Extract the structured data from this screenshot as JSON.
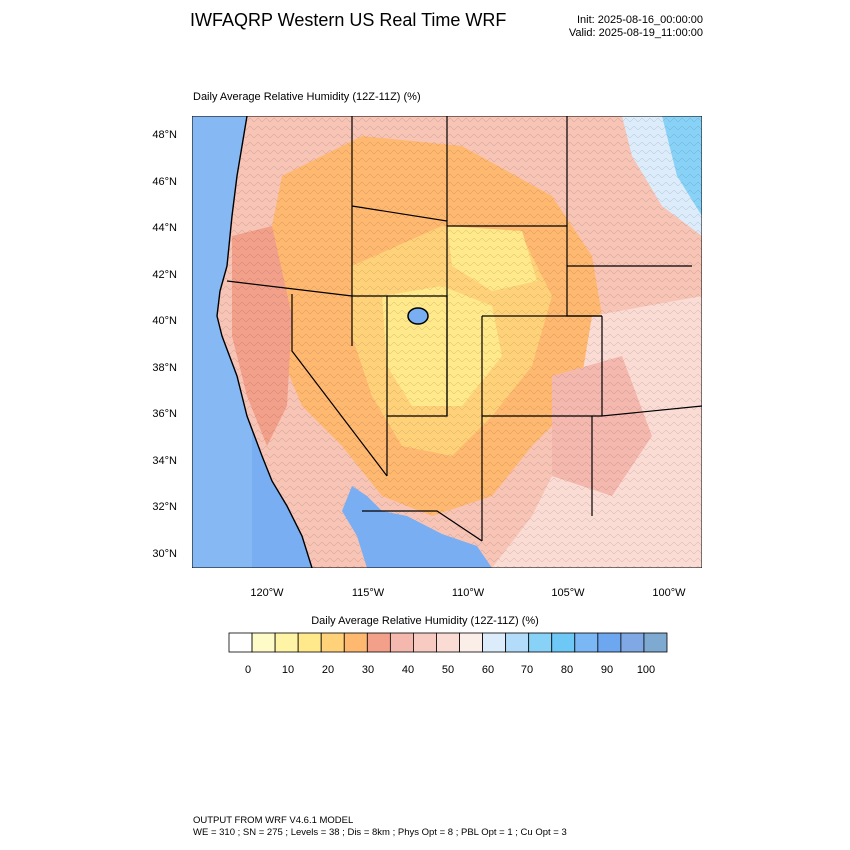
{
  "header": {
    "title": "IWFAQRP Western US Real Time WRF",
    "init": "Init: 2025-08-16_00:00:00",
    "valid": "Valid: 2025-08-19_11:00:00"
  },
  "plot": {
    "title": "Daily Average Relative Humidity (12Z-11Z)   (%)",
    "lat_labels": [
      "48°N",
      "46°N",
      "44°N",
      "42°N",
      "40°N",
      "38°N",
      "36°N",
      "34°N",
      "32°N",
      "30°N"
    ],
    "lon_labels": [
      "120°W",
      "115°W",
      "110°W",
      "105°W",
      "100°W"
    ]
  },
  "colorbar": {
    "title": "Daily Average Relative Humidity (12Z-11Z)  (%)",
    "labels": [
      "0",
      "10",
      "20",
      "30",
      "40",
      "50",
      "60",
      "70",
      "80",
      "90",
      "100"
    ],
    "colors": [
      "#ffffff",
      "#fffbc8",
      "#fff3a6",
      "#ffe98a",
      "#ffd27a",
      "#ffb870",
      "#f2a08a",
      "#f4b8ae",
      "#f7cbc2",
      "#fadcd4",
      "#fbeee8",
      "#dcecfb",
      "#b2dcfa",
      "#88d2f8",
      "#6ec8f6",
      "#7bb7f5",
      "#6da7ef",
      "#7fa8e4",
      "#7ea9d0"
    ]
  },
  "footer": {
    "line1": "OUTPUT FROM WRF V4.6.1 MODEL",
    "line2": "WE = 310 ; SN = 275 ; Levels = 38 ; Dis = 8km ; Phys Opt = 8 ; PBL Opt = 1 ; Cu Opt = 3"
  }
}
